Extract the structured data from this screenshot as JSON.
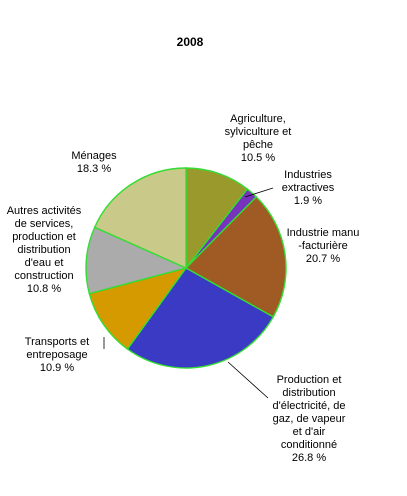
{
  "chart_data": {
    "type": "pie",
    "title": "2008",
    "colors": {
      "slice_border": "#33dd33",
      "leader": "#000000"
    },
    "slices": [
      {
        "label_lines": [
          "Agriculture,",
          "sylviculture et",
          "pêche",
          "10.5 %"
        ],
        "value": 10.5,
        "color": "#9a9a2c"
      },
      {
        "label_lines": [
          "Industries",
          "extractives",
          "1.9 %"
        ],
        "value": 1.9,
        "color": "#7733bb"
      },
      {
        "label_lines": [
          "Industrie manu",
          "-facturière",
          "20.7 %"
        ],
        "value": 20.7,
        "color": "#a05a24"
      },
      {
        "label_lines": [
          "Production et",
          "distribution",
          "d'électricité, de",
          "gaz, de vapeur",
          "et d'air",
          "conditionné",
          "26.8 %"
        ],
        "value": 26.8,
        "color": "#3a3ac4"
      },
      {
        "label_lines": [
          "Transports et",
          "entreposage",
          "10.9 %"
        ],
        "value": 10.9,
        "color": "#d49a00"
      },
      {
        "label_lines": [
          "Autres activités",
          "de services,",
          "production et",
          "distribution",
          "d'eau et",
          "construction",
          "10.8 %"
        ],
        "value": 10.8,
        "color": "#ababab"
      },
      {
        "label_lines": [
          "Ménages",
          "18.3 %"
        ],
        "value": 18.3,
        "color": "#c9c98a"
      }
    ]
  }
}
